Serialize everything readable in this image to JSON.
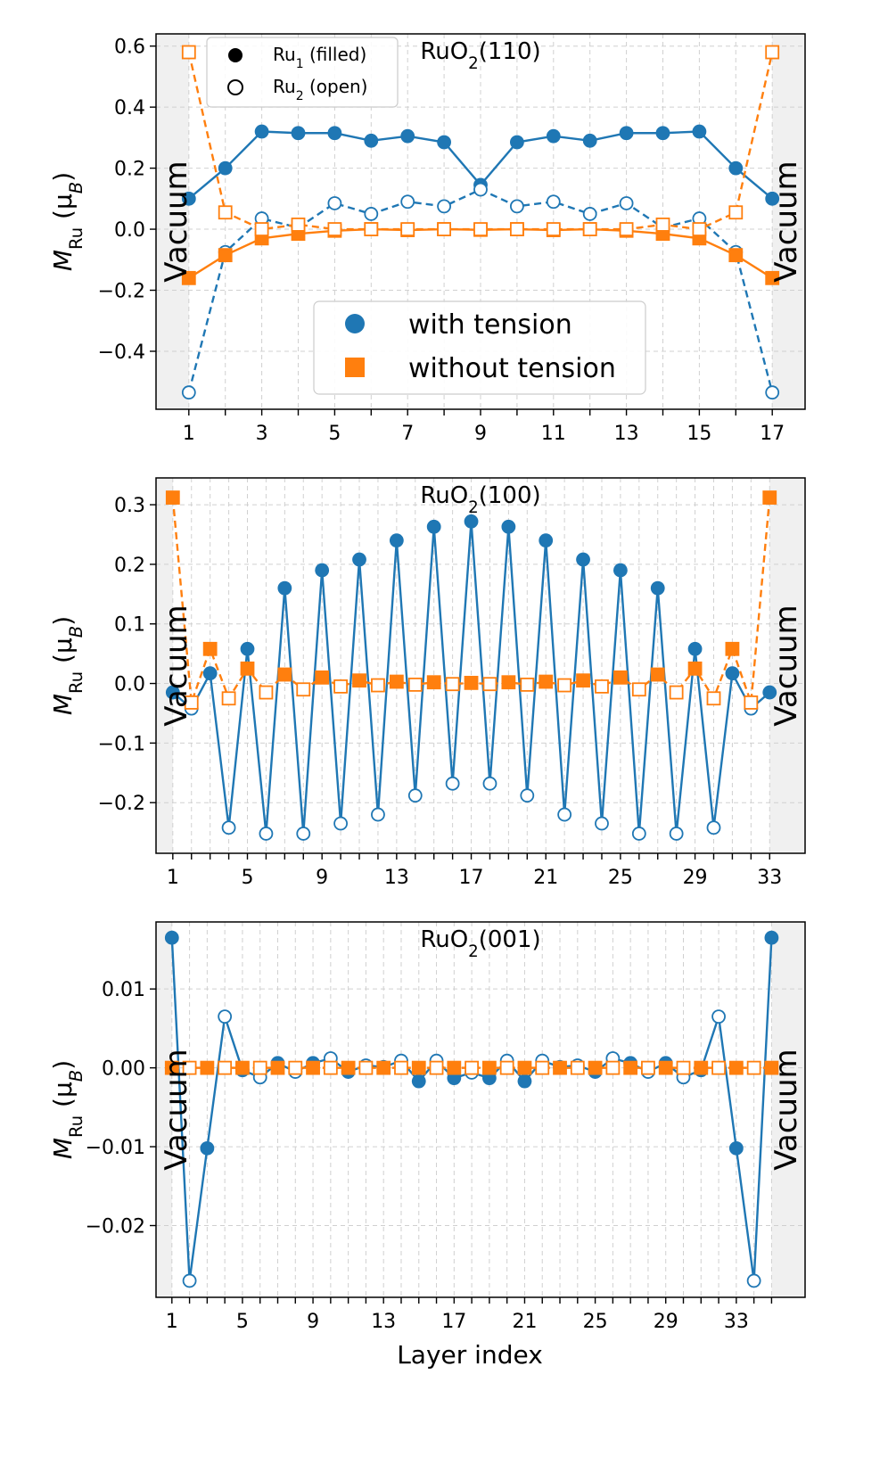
{
  "figure": {
    "xlabel": "Layer index",
    "ylabel_main": "M",
    "ylabel_sub": "Ru",
    "ylabel_unit_open": " (μ",
    "ylabel_unit_sub": "B",
    "ylabel_unit_close": ")",
    "vacuum_label": "Vacuum",
    "colors": {
      "with_tension": "#1f77b4",
      "without_tension": "#ff7f0e",
      "vacuum_shade": "#f0f0f0",
      "grid": "#d0d0d0"
    }
  },
  "legend_main": {
    "with_tension": "with tension",
    "without_tension": "without tension"
  },
  "legend_marker": {
    "filled_prefix": "Ru",
    "filled_sub": "1",
    "filled_suffix": " (filled)",
    "open_prefix": "Ru",
    "open_sub": "2",
    "open_suffix": " (open)"
  },
  "chart_data": [
    {
      "type": "line",
      "title_main": "RuO",
      "title_sub": "2",
      "title_suffix": "(110)",
      "xlim": [
        0.1,
        17.9
      ],
      "ylim": [
        -0.59,
        0.64
      ],
      "xticks": [
        1,
        3,
        5,
        7,
        9,
        11,
        13,
        15,
        17
      ],
      "yticks": [
        -0.4,
        -0.2,
        0.0,
        0.2,
        0.4,
        0.6
      ],
      "ytick_labels": [
        "−0.4",
        "−0.2",
        "0.0",
        "0.2",
        "0.4",
        "0.6"
      ],
      "vacuum_left": [
        0.1,
        1
      ],
      "vacuum_right": [
        17,
        17.9
      ],
      "x": [
        1,
        2,
        3,
        4,
        5,
        6,
        7,
        8,
        9,
        10,
        11,
        12,
        13,
        14,
        15,
        16,
        17
      ],
      "series": [
        {
          "name": "with tension",
          "ru": "Ru1",
          "values": [
            0.1,
            0.2,
            0.32,
            0.315,
            0.315,
            0.29,
            0.305,
            0.285,
            0.145,
            0.285,
            0.305,
            0.29,
            0.315,
            0.315,
            0.32,
            0.2,
            0.1
          ]
        },
        {
          "name": "with tension",
          "ru": "Ru2",
          "values": [
            -0.535,
            -0.075,
            0.035,
            0.005,
            0.085,
            0.05,
            0.09,
            0.075,
            0.13,
            0.075,
            0.09,
            0.05,
            0.085,
            0.005,
            0.035,
            -0.075,
            -0.535
          ]
        },
        {
          "name": "without tension",
          "ru": "Ru1",
          "values": [
            -0.16,
            -0.085,
            -0.03,
            -0.015,
            -0.005,
            0.0,
            -0.003,
            0.0,
            -0.002,
            0.0,
            -0.003,
            0.0,
            -0.005,
            -0.015,
            -0.03,
            -0.085,
            -0.16
          ]
        },
        {
          "name": "without tension",
          "ru": "Ru2",
          "values": [
            0.58,
            0.055,
            0.0,
            0.015,
            0.0,
            0.0,
            0.0,
            0.0,
            0.0,
            0.0,
            0.0,
            0.0,
            0.0,
            0.015,
            0.0,
            0.055,
            0.58
          ]
        }
      ]
    },
    {
      "type": "line",
      "title_main": "RuO",
      "title_sub": "2",
      "title_suffix": "(100)",
      "xlim": [
        0.1,
        34.9
      ],
      "ylim": [
        -0.285,
        0.345
      ],
      "xticks": [
        1,
        5,
        9,
        13,
        17,
        21,
        25,
        29,
        33
      ],
      "yticks": [
        -0.2,
        -0.1,
        0.0,
        0.1,
        0.2,
        0.3
      ],
      "ytick_labels": [
        "−0.2",
        "−0.1",
        "0.0",
        "0.1",
        "0.2",
        "0.3"
      ],
      "vacuum_left": [
        0.1,
        1
      ],
      "vacuum_right": [
        33,
        34.9
      ],
      "x": [
        1,
        2,
        3,
        4,
        5,
        6,
        7,
        8,
        9,
        10,
        11,
        12,
        13,
        14,
        15,
        16,
        17,
        18,
        19,
        20,
        21,
        22,
        23,
        24,
        25,
        26,
        27,
        28,
        29,
        30,
        31,
        32,
        33
      ],
      "series": [
        {
          "name": "with tension",
          "ru": "mixed",
          "values": [
            -0.015,
            -0.042,
            0.017,
            -0.242,
            0.058,
            -0.252,
            0.16,
            -0.252,
            0.19,
            -0.235,
            0.208,
            -0.22,
            0.24,
            -0.188,
            0.263,
            -0.168,
            0.272,
            -0.168,
            0.263,
            -0.188,
            0.24,
            -0.22,
            0.208,
            -0.235,
            0.19,
            -0.252,
            0.16,
            -0.252,
            0.058,
            -0.242,
            0.017,
            -0.042,
            -0.015
          ]
        },
        {
          "name": "without tension",
          "ru": "mixed",
          "values": [
            0.312,
            -0.032,
            0.058,
            -0.025,
            0.025,
            -0.015,
            0.015,
            -0.01,
            0.01,
            -0.005,
            0.005,
            -0.003,
            0.003,
            -0.002,
            0.002,
            -0.001,
            0.001,
            -0.001,
            0.002,
            -0.002,
            0.003,
            -0.003,
            0.005,
            -0.005,
            0.01,
            -0.01,
            0.015,
            -0.015,
            0.025,
            -0.025,
            0.058,
            -0.032,
            0.312
          ]
        }
      ]
    },
    {
      "type": "line",
      "title_main": "RuO",
      "title_sub": "2",
      "title_suffix": "(001)",
      "xlim": [
        0.1,
        36.9
      ],
      "ylim": [
        -0.0291,
        0.0185
      ],
      "xticks": [
        1,
        5,
        9,
        13,
        17,
        21,
        25,
        29,
        33
      ],
      "yticks": [
        -0.02,
        -0.01,
        0.0,
        0.01
      ],
      "ytick_labels": [
        "−0.02",
        "−0.01",
        "0.00",
        "0.01"
      ],
      "vacuum_left": [
        0.1,
        1
      ],
      "vacuum_right": [
        35,
        36.9
      ],
      "x": [
        1,
        2,
        3,
        4,
        5,
        6,
        7,
        8,
        9,
        10,
        11,
        12,
        13,
        14,
        15,
        16,
        17,
        18,
        19,
        20,
        21,
        22,
        23,
        24,
        25,
        26,
        27,
        28,
        29,
        30,
        31,
        32,
        33,
        34,
        35
      ],
      "series": [
        {
          "name": "with tension",
          "ru": "mixed",
          "values": [
            0.0165,
            -0.027,
            -0.0102,
            0.0065,
            -0.0003,
            -0.0012,
            0.0006,
            -0.0005,
            0.0006,
            0.0012,
            -0.0005,
            0.0003,
            0.0001,
            0.0009,
            -0.0017,
            0.0009,
            -0.0013,
            -0.0006,
            -0.0013,
            0.0009,
            -0.0017,
            0.0009,
            0.0001,
            0.0003,
            -0.0005,
            0.0012,
            0.0006,
            -0.0005,
            0.0006,
            -0.0012,
            -0.0003,
            0.0065,
            -0.0102,
            -0.027,
            0.0165
          ]
        },
        {
          "name": "without tension",
          "ru": "mixed",
          "values": [
            0,
            0,
            0,
            0,
            0,
            0,
            0,
            0,
            0,
            0,
            0,
            0,
            0,
            0,
            0,
            0,
            0,
            0,
            0,
            0,
            0,
            0,
            0,
            0,
            0,
            0,
            0,
            0,
            0,
            0,
            0,
            0,
            0,
            0,
            0
          ]
        }
      ]
    }
  ]
}
